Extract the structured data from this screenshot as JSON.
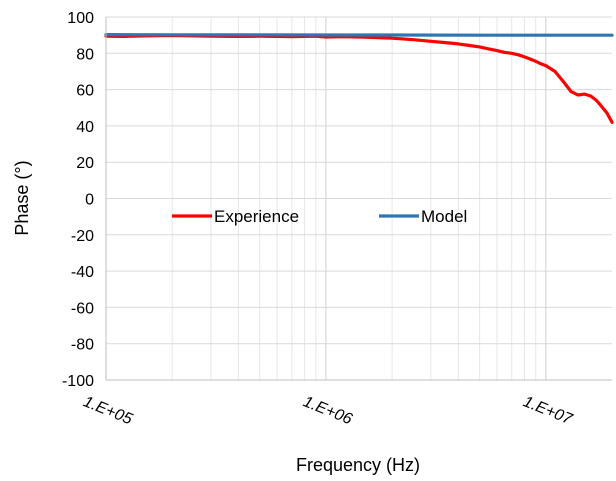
{
  "chart_data": {
    "type": "line",
    "title": "",
    "xlabel": "Frequency (Hz)",
    "ylabel": "Phase (°)",
    "x_scale": "log",
    "xlim": [
      100000,
      20000000
    ],
    "ylim": [
      -100,
      100
    ],
    "y_ticks": [
      100,
      80,
      60,
      40,
      20,
      0,
      -20,
      -40,
      -60,
      -80,
      -100
    ],
    "x_ticks": [
      {
        "value": 100000,
        "label": "1.E+05"
      },
      {
        "value": 1000000,
        "label": "1.E+06"
      },
      {
        "value": 10000000,
        "label": "1.E+07"
      }
    ],
    "grid": true,
    "legend_position": "center-left",
    "series": [
      {
        "name": "Experience",
        "color": "#ff0000",
        "x": [
          100000,
          120000,
          150000,
          200000,
          300000,
          400000,
          500000,
          700000,
          900000,
          1000000,
          1200000,
          1500000,
          2000000,
          2500000,
          3000000,
          3500000,
          4000000,
          4500000,
          5000000,
          5500000,
          6000000,
          6500000,
          7000000,
          7500000,
          8000000,
          8500000,
          9000000,
          9500000,
          10000000,
          11000000,
          12000000,
          13000000,
          14000000,
          15000000,
          16000000,
          17000000,
          18000000,
          19000000,
          20000000
        ],
        "y": [
          89.5,
          89.3,
          89.6,
          89.8,
          89.5,
          89.3,
          89.4,
          89.2,
          89.4,
          89.0,
          89.2,
          88.9,
          88.3,
          87.5,
          86.6,
          85.9,
          85.2,
          84.3,
          83.5,
          82.4,
          81.5,
          80.5,
          80.0,
          79.2,
          78.0,
          76.8,
          75.6,
          74.2,
          73.2,
          70.0,
          64.5,
          59.0,
          57.0,
          57.5,
          56.5,
          54.0,
          50.5,
          47.0,
          42.0
        ]
      },
      {
        "name": "Model",
        "color": "#2e75b6",
        "x": [
          100000,
          200000,
          500000,
          1000000,
          2000000,
          5000000,
          10000000,
          20000000
        ],
        "y": [
          90.3,
          90.2,
          90.2,
          90.1,
          90.1,
          90.0,
          90.0,
          90.0
        ]
      }
    ]
  }
}
